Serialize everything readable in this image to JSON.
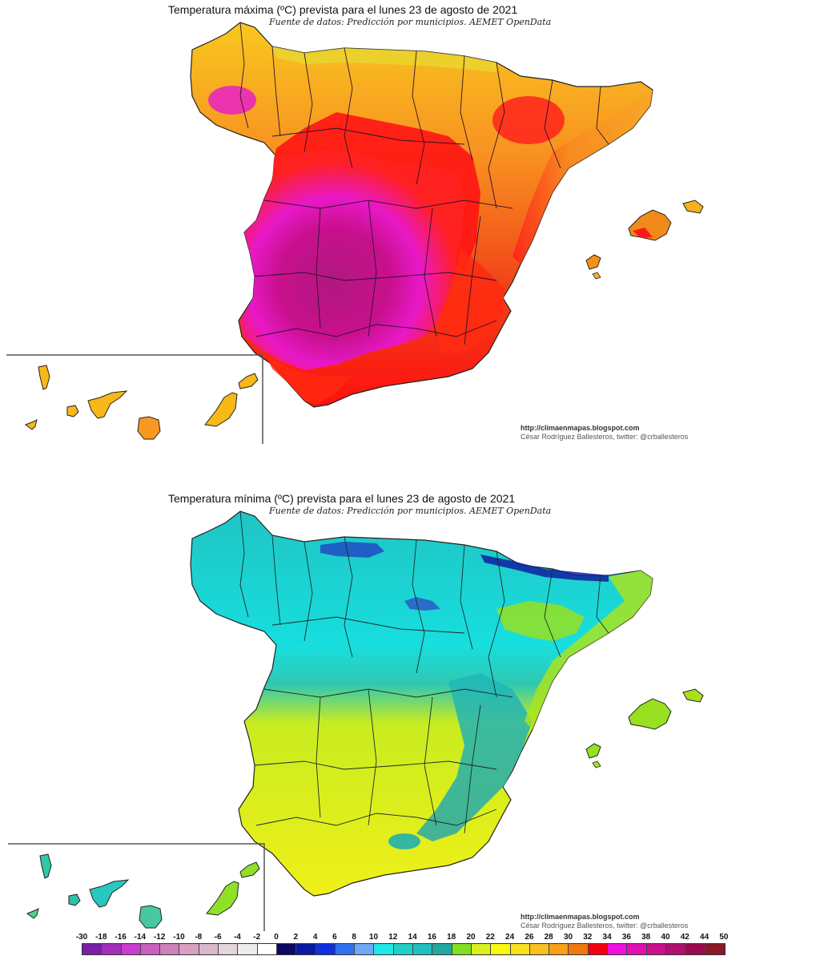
{
  "maps": [
    {
      "id": "max",
      "title": "Temperatura máxima (ºC) prevista para el lunes 23 de agosto de 2021",
      "subtitle": "Fuente de datos: Predicción por municipios. AEMET OpenData",
      "credit_url": "http://climaenmapas.blogspot.com",
      "credit_author": "César Rodríguez Ballesteros, twitter: @crballesteros",
      "region": "Spain (Peninsula, Balearic Islands, Canary Islands inset)",
      "dominant_colors": {
        "north_coast": "#f4c020",
        "galicia_interior": "#f07010",
        "meseta_north": "#ff1010",
        "center_south": "#c0108a",
        "hot_core": "#ff20d0",
        "mediterranean_coast": "#f8a020",
        "balearics": "#f08a10",
        "canaries": "#f8b818"
      }
    },
    {
      "id": "min",
      "title": "Temperatura mínima (ºC) prevista para el lunes 23 de agosto de 2021",
      "subtitle": "Fuente de datos: Predicción por municipios. AEMET OpenData",
      "credit_url": "http://climaenmapas.blogspot.com",
      "credit_author": "César Rodríguez Ballesteros, twitter: @crballesteros",
      "region": "Spain (Peninsula, Balearic Islands, Canary Islands inset)",
      "dominant_colors": {
        "north": "#20c0c0",
        "north_plateau": "#10e0e0",
        "mountains": "#1010a0",
        "south": "#e8f020",
        "southwest": "#f0f010",
        "ebro_valley": "#88e020",
        "east_mountains": "#20a8a8",
        "canaries": "#88e020"
      }
    }
  ],
  "legend": {
    "unit": "ºC",
    "labels": [
      "-30",
      "-18",
      "-16",
      "-14",
      "-12",
      "-10",
      "-8",
      "-6",
      "-4",
      "-2",
      "0",
      "2",
      "4",
      "6",
      "8",
      "10",
      "12",
      "14",
      "16",
      "18",
      "20",
      "22",
      "24",
      "26",
      "28",
      "30",
      "32",
      "34",
      "36",
      "38",
      "40",
      "42",
      "44",
      "50"
    ],
    "colors": [
      "#7a1fa8",
      "#a030b8",
      "#c83cd0",
      "#c860c0",
      "#d080b8",
      "#d8a0c0",
      "#dab8cc",
      "#e4d4dc",
      "#ececec",
      "#ffffff",
      "#0a0a60",
      "#0a1aa0",
      "#1030e0",
      "#3070f0",
      "#70a8f8",
      "#20e8e8",
      "#20d0c8",
      "#20c0c0",
      "#20a8a0",
      "#80e020",
      "#d8f020",
      "#f8f810",
      "#f8e020",
      "#f8c020",
      "#f8a018",
      "#f07810",
      "#f00010",
      "#f010e0",
      "#e010b0",
      "#c8108a",
      "#b01070",
      "#980c50",
      "#8a1a28"
    ]
  },
  "chart_data": {
    "type": "heatmap",
    "title": "Temperatura máxima y mínima (ºC) prevista para el lunes 23 de agosto de 2021",
    "source": "Predicción por municipios. AEMET OpenData",
    "colorbar_ticks": [
      -30,
      -18,
      -16,
      -14,
      -12,
      -10,
      -8,
      -6,
      -4,
      -2,
      0,
      2,
      4,
      6,
      8,
      10,
      12,
      14,
      16,
      18,
      20,
      22,
      24,
      26,
      28,
      30,
      32,
      34,
      36,
      38,
      40,
      42,
      44,
      50
    ],
    "panels": [
      {
        "name": "Temperatura máxima",
        "regional_ranges_c": {
          "Cantabrian coast": [
            24,
            28
          ],
          "Galicia interior": [
            30,
            36
          ],
          "Northern Meseta (Castilla y León)": [
            32,
            38
          ],
          "Extremadura / Castilla-La Mancha / Madrid": [
            38,
            42
          ],
          "Andalucía interior": [
            38,
            42
          ],
          "Mediterranean coast": [
            28,
            32
          ],
          "Ebro valley": [
            32,
            36
          ],
          "Balearic Islands": [
            28,
            34
          ],
          "Canary Islands": [
            24,
            28
          ]
        }
      },
      {
        "name": "Temperatura mínima",
        "regional_ranges_c": {
          "Cantabrian coast": [
            12,
            16
          ],
          "Pyrenees / Cantabrian range": [
            4,
            10
          ],
          "Northern Meseta": [
            10,
            14
          ],
          "Iberian system / eastern mountains": [
            14,
            18
          ],
          "Extremadura / Andalucía west": [
            20,
            24
          ],
          "Castilla-La Mancha": [
            18,
            22
          ],
          "Ebro valley / Mediterranean coast": [
            18,
            22
          ],
          "Sierra Nevada": [
            8,
            12
          ],
          "Balearic Islands": [
            18,
            22
          ],
          "Canary Islands": [
            14,
            20
          ]
        }
      }
    ]
  }
}
